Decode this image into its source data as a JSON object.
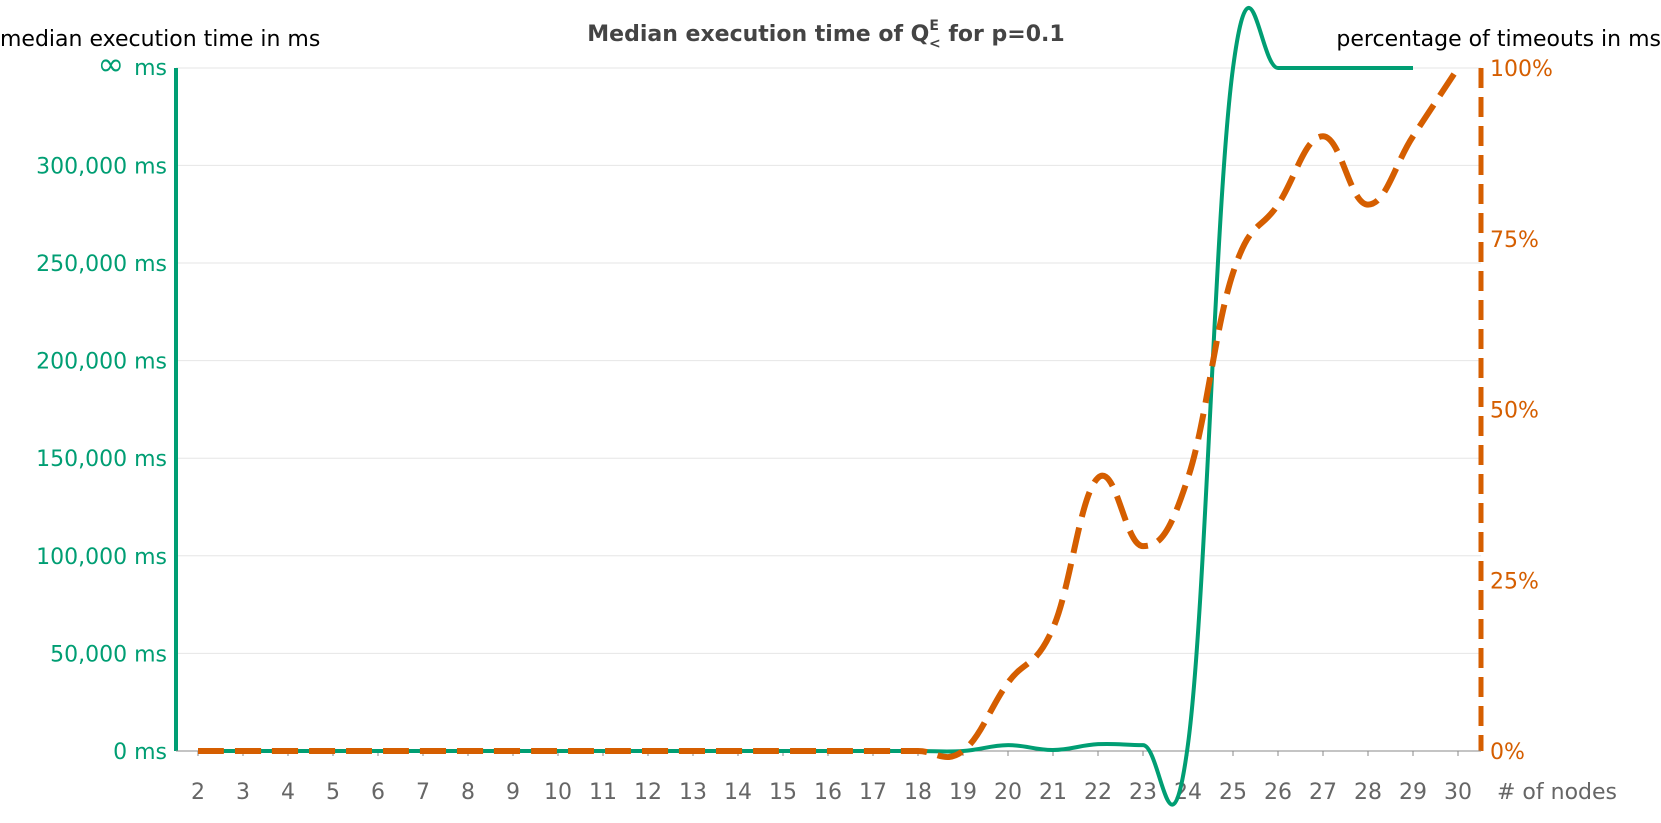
{
  "chart_data": {
    "type": "line",
    "title": {
      "main": "Median execution time of Q",
      "superscript": "E",
      "subscript": "<",
      "tail": " for p=0.1"
    },
    "left_axis": {
      "title": "median execution time in ms",
      "color": "#009E73",
      "range": [
        0,
        350000
      ],
      "ticks": [
        {
          "value": 0,
          "label": "0 ms"
        },
        {
          "value": 50000,
          "label": "50,000 ms"
        },
        {
          "value": 100000,
          "label": "100,000 ms"
        },
        {
          "value": 150000,
          "label": "150,000 ms"
        },
        {
          "value": 200000,
          "label": "200,000 ms"
        },
        {
          "value": 250000,
          "label": "250,000 ms"
        },
        {
          "value": 300000,
          "label": "300,000 ms"
        }
      ],
      "top_label": {
        "symbol": "∞",
        "unit": "ms"
      }
    },
    "right_axis": {
      "title": "percentage of timeouts in ms",
      "color": "#D55E00",
      "range": [
        0,
        100
      ],
      "ticks": [
        {
          "value": 0,
          "label": "0%"
        },
        {
          "value": 25,
          "label": "25%"
        },
        {
          "value": 50,
          "label": "50%"
        },
        {
          "value": 75,
          "label": "75%"
        },
        {
          "value": 100,
          "label": "100%"
        }
      ]
    },
    "x_axis": {
      "title": "# of nodes",
      "categories": [
        2,
        3,
        4,
        5,
        6,
        7,
        8,
        9,
        10,
        11,
        12,
        13,
        14,
        15,
        16,
        17,
        18,
        19,
        20,
        21,
        22,
        23,
        24,
        25,
        26,
        27,
        28,
        29,
        30
      ]
    },
    "grid": true,
    "series": [
      {
        "axis": "left",
        "color": "#009E73",
        "style": "solid",
        "x": [
          2,
          3,
          4,
          5,
          6,
          7,
          8,
          9,
          10,
          11,
          12,
          13,
          14,
          15,
          16,
          17,
          18,
          19,
          20,
          21,
          22,
          23,
          24,
          25,
          26,
          27,
          28,
          29
        ],
        "y": [
          0,
          0,
          0,
          0,
          0,
          0,
          0,
          0,
          0,
          0,
          0,
          0,
          0,
          0,
          0,
          0,
          0,
          0,
          3000,
          500,
          3500,
          3000,
          3500,
          "∞",
          "∞",
          "∞",
          "∞",
          "∞"
        ]
      },
      {
        "axis": "right",
        "color": "#D55E00",
        "style": "dashed",
        "x": [
          2,
          3,
          4,
          5,
          6,
          7,
          8,
          9,
          10,
          11,
          12,
          13,
          14,
          15,
          16,
          17,
          18,
          19,
          20,
          21,
          22,
          23,
          24,
          25,
          26,
          27,
          28,
          29,
          30
        ],
        "y": [
          0,
          0,
          0,
          0,
          0,
          0,
          0,
          0,
          0,
          0,
          0,
          0,
          0,
          0,
          0,
          0,
          0,
          0,
          10,
          18,
          40,
          30,
          40,
          70,
          80,
          90,
          80,
          90,
          100
        ]
      }
    ]
  }
}
